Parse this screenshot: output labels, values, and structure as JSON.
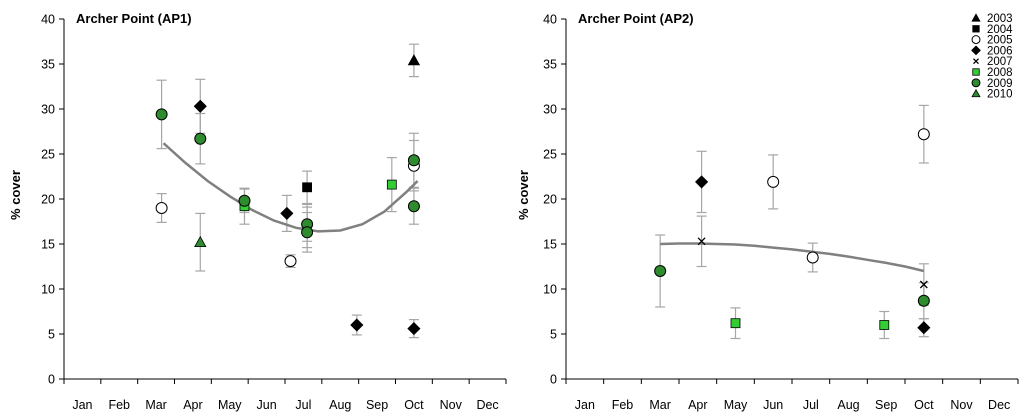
{
  "colors": {
    "axis": "#000000",
    "error_bar": "#a6a6a6",
    "trend": "#808080",
    "green_light": "#33cc33",
    "green_dark": "#2e8b2e",
    "black": "#000000",
    "white": "#ffffff"
  },
  "legend": {
    "placement": "top-right of second panel",
    "entries": [
      {
        "label": "2003",
        "marker": "triangle",
        "color": "#000000"
      },
      {
        "label": "2004",
        "marker": "square",
        "color": "#000000"
      },
      {
        "label": "2005",
        "marker": "circle-open",
        "color": "#ffffff"
      },
      {
        "label": "2006",
        "marker": "diamond",
        "color": "#000000"
      },
      {
        "label": "2007",
        "marker": "x",
        "color": "#000000"
      },
      {
        "label": "2008",
        "marker": "square",
        "color": "#33cc33"
      },
      {
        "label": "2009",
        "marker": "circle",
        "color": "#2e8b2e"
      },
      {
        "label": "2010",
        "marker": "triangle",
        "color": "#2e8b2e"
      }
    ]
  },
  "chart_data": [
    {
      "type": "scatter",
      "title": "Archer Point (AP1)",
      "ylabel": "% cover",
      "xlabel": "",
      "categories": [
        "Jan",
        "Feb",
        "Mar",
        "Apr",
        "May",
        "Jun",
        "Jul",
        "Aug",
        "Sep",
        "Oct",
        "Nov",
        "Dec"
      ],
      "ylim": [
        0,
        40
      ],
      "yticks": [
        0,
        5,
        10,
        15,
        20,
        25,
        30,
        35,
        40
      ],
      "grid": false,
      "points": [
        {
          "year": "2003",
          "x": 10.0,
          "y": 35.4,
          "err": 1.8
        },
        {
          "year": "2004",
          "x": 7.1,
          "y": 21.3,
          "err": 1.8
        },
        {
          "year": "2005",
          "x": 3.15,
          "y": 19.0,
          "err": 1.6
        },
        {
          "year": "2005",
          "x": 6.65,
          "y": 13.1,
          "err": 0.7
        },
        {
          "year": "2005",
          "x": 10.0,
          "y": 23.7,
          "err": 2.8
        },
        {
          "year": "2006",
          "x": 4.2,
          "y": 30.3,
          "err": 3.0
        },
        {
          "year": "2006",
          "x": 6.55,
          "y": 18.4,
          "err": 2.0
        },
        {
          "year": "2006",
          "x": 8.45,
          "y": 6.0,
          "err": 1.1
        },
        {
          "year": "2006",
          "x": 10.0,
          "y": 5.6,
          "err": 1.0
        },
        {
          "year": "2007",
          "x": 7.1,
          "y": 17.0,
          "err": 2.4
        },
        {
          "year": "2008",
          "x": 5.4,
          "y": 19.2,
          "err": 2.0
        },
        {
          "year": "2008",
          "x": 9.4,
          "y": 21.6,
          "err": 3.0
        },
        {
          "year": "2009",
          "x": 3.15,
          "y": 29.4,
          "err": 3.8
        },
        {
          "year": "2009",
          "x": 4.2,
          "y": 26.7,
          "err": 2.8
        },
        {
          "year": "2009",
          "x": 5.4,
          "y": 19.8,
          "err": 1.3
        },
        {
          "year": "2009",
          "x": 7.1,
          "y": 17.2,
          "err": 1.9
        },
        {
          "year": "2009",
          "x": 7.1,
          "y": 16.3,
          "err": 2.2
        },
        {
          "year": "2009",
          "x": 10.0,
          "y": 24.3,
          "err": 3.0
        },
        {
          "year": "2009",
          "x": 10.0,
          "y": 19.2,
          "err": 2.0
        },
        {
          "year": "2010",
          "x": 4.2,
          "y": 15.2,
          "err": 3.2
        }
      ],
      "trend": {
        "x": [
          3.2,
          3.8,
          4.4,
          5.0,
          5.6,
          6.2,
          6.8,
          7.4,
          8.0,
          8.6,
          9.2,
          9.8,
          10.1
        ],
        "y": [
          26.2,
          24.0,
          22.0,
          20.3,
          18.8,
          17.6,
          16.8,
          16.4,
          16.5,
          17.2,
          18.6,
          20.8,
          22.0
        ]
      }
    },
    {
      "type": "scatter",
      "title": "Archer Point (AP2)",
      "ylabel": "% cover",
      "xlabel": "",
      "categories": [
        "Jan",
        "Feb",
        "Mar",
        "Apr",
        "May",
        "Jun",
        "Jul",
        "Aug",
        "Sep",
        "Oct",
        "Nov",
        "Dec"
      ],
      "ylim": [
        0,
        40
      ],
      "yticks": [
        0,
        5,
        10,
        15,
        20,
        25,
        30,
        35,
        40
      ],
      "grid": false,
      "points": [
        {
          "year": "2005",
          "x": 6.0,
          "y": 21.9,
          "err": 3.0
        },
        {
          "year": "2005",
          "x": 7.05,
          "y": 13.5,
          "err": 1.6
        },
        {
          "year": "2005",
          "x": 10.0,
          "y": 27.2,
          "err": 3.2
        },
        {
          "year": "2006",
          "x": 4.1,
          "y": 21.9,
          "err": 3.4
        },
        {
          "year": "2006",
          "x": 10.0,
          "y": 5.7,
          "err": 1.0
        },
        {
          "year": "2007",
          "x": 4.1,
          "y": 15.3,
          "err": 2.8
        },
        {
          "year": "2007",
          "x": 10.0,
          "y": 10.5,
          "err": 2.3
        },
        {
          "year": "2008",
          "x": 5.0,
          "y": 6.2,
          "err": 1.7
        },
        {
          "year": "2008",
          "x": 8.95,
          "y": 6.0,
          "err": 1.5
        },
        {
          "year": "2009",
          "x": 3.0,
          "y": 12.0,
          "err": 4.0
        },
        {
          "year": "2009",
          "x": 10.0,
          "y": 8.7,
          "err": 2.0
        }
      ],
      "trend": {
        "x": [
          3.0,
          3.5,
          4.0,
          4.5,
          5.0,
          5.5,
          6.0,
          6.5,
          7.0,
          7.5,
          8.0,
          8.5,
          9.0,
          9.5,
          10.0
        ],
        "y": [
          15.0,
          15.05,
          15.05,
          15.0,
          14.95,
          14.8,
          14.6,
          14.4,
          14.15,
          13.9,
          13.6,
          13.25,
          12.9,
          12.5,
          12.0
        ]
      }
    }
  ]
}
